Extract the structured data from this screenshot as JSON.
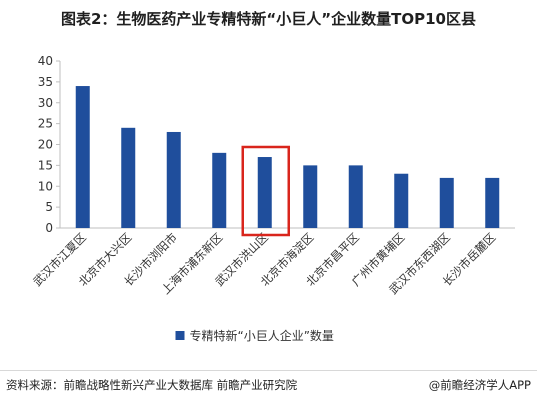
{
  "title": "图表2：生物医药产业专精特新“小巨人”企业数量TOP10区县",
  "chart_data": {
    "type": "bar",
    "categories": [
      "武汉市江夏区",
      "北京市大兴区",
      "长沙市浏阳市",
      "上海市浦东新区",
      "武汉市洪山区",
      "北京市海淀区",
      "北京市昌平区",
      "广州市黄埔区",
      "武汉市东西湖区",
      "长沙市岳麓区"
    ],
    "series": [
      {
        "name": "专精特新“小巨人企业”数量",
        "values": [
          34,
          24,
          23,
          18,
          17,
          15,
          15,
          13,
          12,
          12
        ]
      }
    ],
    "ylim": [
      0,
      40
    ],
    "yticks": [
      0,
      5,
      10,
      15,
      20,
      25,
      30,
      35,
      40
    ],
    "grid": false,
    "legend_position": "bottom",
    "highlight_index": 4,
    "colors": {
      "bar": "#1f4e9c",
      "highlight_box": "#d9251c",
      "axis": "#bfbfbf",
      "text": "#333333"
    }
  },
  "footer": {
    "source": "资料来源：前瞻战略性新兴产业大数据库 前瞻产业研究院",
    "brand": "@前瞻经济学人APP"
  }
}
